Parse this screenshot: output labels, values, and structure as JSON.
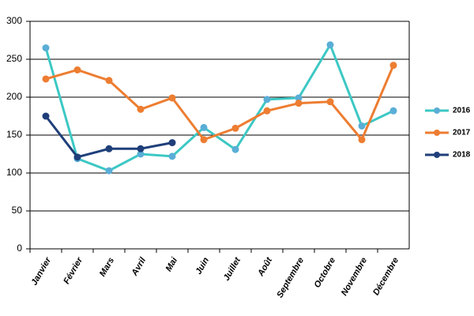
{
  "chart_data": {
    "type": "line",
    "categories": [
      "Janvier",
      "Février",
      "Mars",
      "Avril",
      "Mai",
      "Juin",
      "Juillet",
      "Août",
      "Septembre",
      "Octobre",
      "Novembre",
      "Décembre"
    ],
    "series": [
      {
        "name": "2016",
        "color": "#3cc8c4",
        "marker_color": "#5aaed6",
        "values": [
          265,
          119,
          103,
          125,
          122,
          160,
          131,
          197,
          199,
          269,
          162,
          182
        ]
      },
      {
        "name": "2017",
        "color": "#ed7d31",
        "marker_color": "#ed7d31",
        "values": [
          224,
          236,
          222,
          184,
          199,
          144,
          159,
          182,
          192,
          194,
          144,
          242
        ]
      },
      {
        "name": "2018",
        "color": "#1f3f7a",
        "marker_color": "#1f3f7a",
        "values": [
          175,
          121,
          132,
          132,
          140,
          null,
          null,
          null,
          null,
          null,
          null,
          null
        ]
      }
    ],
    "ylim": [
      0,
      300
    ],
    "yticks": [
      0,
      50,
      100,
      150,
      200,
      250,
      300
    ],
    "grid": true,
    "legend": "right"
  }
}
